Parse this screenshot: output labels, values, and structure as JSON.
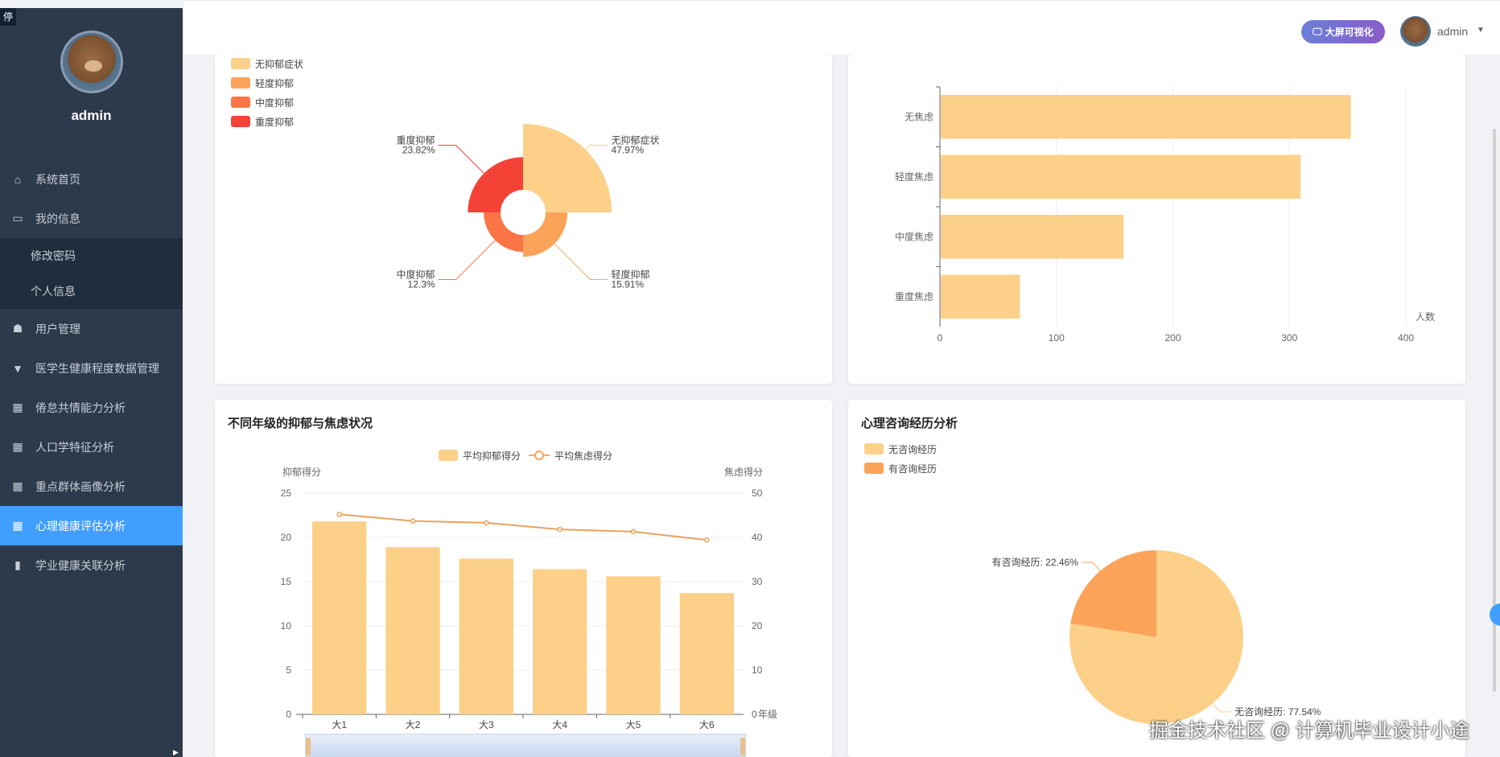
{
  "sidebar": {
    "stop_tag": "停",
    "username": "admin",
    "menu": [
      {
        "label": "系统首页",
        "icon": "home-icon"
      },
      {
        "label": "我的信息",
        "icon": "id-card-icon"
      },
      {
        "label": "修改密码",
        "icon": "",
        "sub": true
      },
      {
        "label": "个人信息",
        "icon": "",
        "sub": true
      },
      {
        "label": "用户管理",
        "icon": "user-manage-icon"
      },
      {
        "label": "医学生健康程度数据管理",
        "icon": "database-icon"
      },
      {
        "label": "倦怠共情能力分析",
        "icon": "grid-icon"
      },
      {
        "label": "人口学特征分析",
        "icon": "grid-icon"
      },
      {
        "label": "重点群体画像分析",
        "icon": "grid-icon"
      },
      {
        "label": "心理健康评估分析",
        "icon": "grid-icon",
        "active": true
      },
      {
        "label": "学业健康关联分析",
        "icon": "bar-chart-icon"
      }
    ]
  },
  "header": {
    "big_screen_label": "大屏可视化",
    "username": "admin"
  },
  "watermark": "掘金技术社区 @ 计算机毕业设计小途",
  "colors": {
    "sidebar_bg": "#2d3a4b",
    "active": "#409eff",
    "slice1": "#fcd089",
    "slice2": "#fca35a",
    "slice3": "#fb7446",
    "slice4": "#f44336"
  },
  "chart_data": [
    {
      "type": "pie",
      "variant": "rose",
      "legend": [
        "无抑郁症状",
        "轻度抑郁",
        "中度抑郁",
        "重度抑郁"
      ],
      "legend_position": "top-left",
      "slices": [
        {
          "name": "无抑郁症状",
          "value": 47.97,
          "label": "47.97%"
        },
        {
          "name": "轻度抑郁",
          "value": 15.91,
          "label": "15.91%"
        },
        {
          "name": "中度抑郁",
          "value": 12.3,
          "label": "12.3%"
        },
        {
          "name": "重度抑郁",
          "value": 23.82,
          "label": "23.82%"
        }
      ]
    },
    {
      "type": "bar",
      "orientation": "horizontal",
      "categories": [
        "无焦虑",
        "轻度焦虑",
        "中度焦虑",
        "重度焦虑"
      ],
      "values": [
        352,
        309,
        157,
        68
      ],
      "xlabel": "人数",
      "xlim": [
        0,
        400
      ],
      "xticks": [
        "0",
        "100",
        "200",
        "300",
        "400"
      ],
      "grid": true
    },
    {
      "type": "bar",
      "title": "不同年级的抑郁与焦虑状况",
      "categories": [
        "大1",
        "大2",
        "大3",
        "大4",
        "大5",
        "大6"
      ],
      "xlabel": "年级",
      "series": [
        {
          "name": "平均抑郁得分",
          "type": "bar",
          "axis": "left",
          "values": [
            21.8,
            18.9,
            17.6,
            16.4,
            15.6,
            13.7
          ]
        },
        {
          "name": "平均焦虑得分",
          "type": "line",
          "axis": "right",
          "values": [
            45.2,
            43.7,
            43.3,
            41.8,
            41.3,
            39.4
          ]
        }
      ],
      "ylabel_left": "抑郁得分",
      "ylabel_right": "焦虑得分",
      "ylim_left": [
        0,
        25
      ],
      "ylim_right": [
        0,
        50
      ],
      "yticks_left": [
        "0",
        "5",
        "10",
        "15",
        "20",
        "25"
      ],
      "yticks_right": [
        "0",
        "10",
        "20",
        "30",
        "40",
        "50"
      ],
      "legend_position": "top-center",
      "grid": true
    },
    {
      "type": "pie",
      "title": "心理咨询经历分析",
      "legend": [
        "无咨询经历",
        "有咨询经历"
      ],
      "legend_position": "top-left",
      "slices": [
        {
          "name": "无咨询经历",
          "value": 77.54,
          "label": "无咨询经历: 77.54%"
        },
        {
          "name": "有咨询经历",
          "value": 22.46,
          "label": "有咨询经历: 22.46%"
        }
      ]
    }
  ]
}
